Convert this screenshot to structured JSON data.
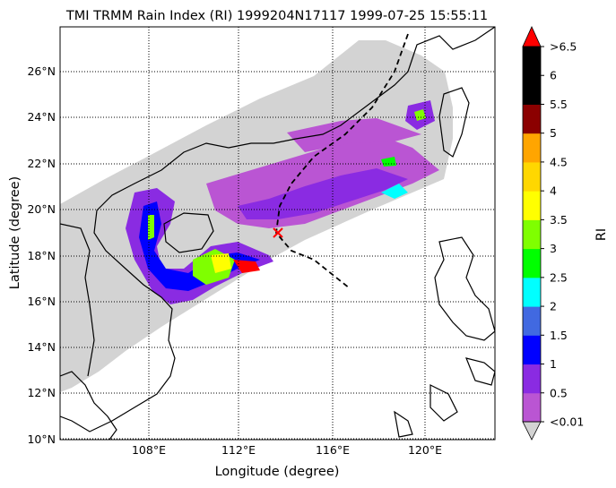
{
  "title": "TMI TRMM Rain Index (RI) 1999204N17117 1999-07-25 15:55:11",
  "xlabel": "Longitude (degree)",
  "ylabel": "Latitude (degree)",
  "colorbar_label": "RI",
  "x_ticks": [
    "108°E",
    "112°E",
    "116°E",
    "120°E"
  ],
  "y_ticks": [
    "10°N",
    "12°N",
    "14°N",
    "16°N",
    "18°N",
    "20°N",
    "22°N",
    "24°N",
    "26°N"
  ],
  "colorbar": {
    "tick_labels": [
      "<0.01",
      "0.5",
      "1",
      "1.5",
      "2",
      "2.5",
      "3",
      "3.5",
      "4",
      "4.5",
      "5",
      "5.5",
      "6",
      ">6.5"
    ],
    "colors": [
      "#ba55d3",
      "#8a2be2",
      "#0000ff",
      "#4169e1",
      "#00ffff",
      "#00ff00",
      "#7fff00",
      "#ffff00",
      "#ffd700",
      "#ffa500",
      "#8b0000",
      "#000000",
      "#000000",
      "#000000"
    ],
    "under_color": "#d3d3d3",
    "over_color": "#ff0000"
  },
  "map": {
    "lon_range": [
      104.5,
      123.0
    ],
    "lat_range": [
      9.9,
      28.0
    ],
    "swath_color": "#d3d3d3",
    "track_marker_color": "#ff0000"
  }
}
